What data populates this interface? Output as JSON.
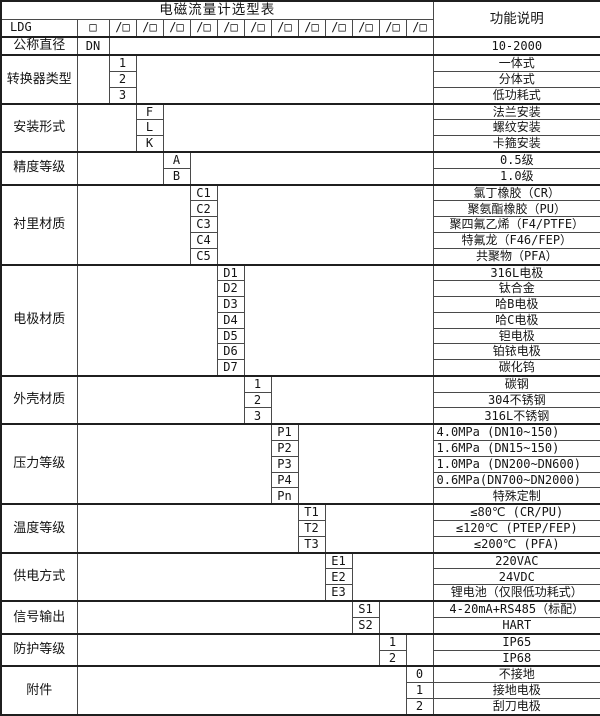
{
  "header": {
    "title": "电磁流量计选型表",
    "desc_header": "功能说明"
  },
  "model_row": {
    "prefix": "LDG",
    "first_slot": "□",
    "slot": "/□",
    "slot_count": 12
  },
  "layout_hint": {
    "code_columns": 12
  },
  "colors": {
    "background": "#ffffff",
    "text": "#141414",
    "grid_line": "#4a4a4a",
    "heavy_line": "#1f1f1f"
  },
  "groups": [
    {
      "label": "公称直径",
      "col": 0,
      "rows": [
        {
          "code": "DN",
          "desc": "10-2000"
        }
      ]
    },
    {
      "label": "转换器类型",
      "col": 1,
      "rows": [
        {
          "code": "1",
          "desc": "一体式"
        },
        {
          "code": "2",
          "desc": "分体式"
        },
        {
          "code": "3",
          "desc": "低功耗式"
        }
      ]
    },
    {
      "label": "安装形式",
      "col": 2,
      "rows": [
        {
          "code": "F",
          "desc": "法兰安装"
        },
        {
          "code": "L",
          "desc": "螺纹安装"
        },
        {
          "code": "K",
          "desc": "卡箍安装"
        }
      ]
    },
    {
      "label": "精度等级",
      "col": 3,
      "rows": [
        {
          "code": "A",
          "desc": "0.5级"
        },
        {
          "code": "B",
          "desc": "1.0级"
        }
      ]
    },
    {
      "label": "衬里材质",
      "col": 4,
      "rows": [
        {
          "code": "C1",
          "desc": "氯丁橡胶（CR）"
        },
        {
          "code": "C2",
          "desc": "聚氨酯橡胶（PU）"
        },
        {
          "code": "C3",
          "desc": "聚四氟乙烯（F4/PTFE）"
        },
        {
          "code": "C4",
          "desc": "特氟龙（F46/FEP）"
        },
        {
          "code": "C5",
          "desc": "共聚物（PFA）"
        }
      ]
    },
    {
      "label": "电极材质",
      "col": 5,
      "rows": [
        {
          "code": "D1",
          "desc": "316L电极"
        },
        {
          "code": "D2",
          "desc": "钛合金"
        },
        {
          "code": "D3",
          "desc": "哈B电极"
        },
        {
          "code": "D4",
          "desc": "哈C电极"
        },
        {
          "code": "D5",
          "desc": "钽电极"
        },
        {
          "code": "D6",
          "desc": "铂铱电极"
        },
        {
          "code": "D7",
          "desc": "碳化钨"
        }
      ]
    },
    {
      "label": "外壳材质",
      "col": 6,
      "rows": [
        {
          "code": "1",
          "desc": "碳钢"
        },
        {
          "code": "2",
          "desc": "304不锈钢"
        },
        {
          "code": "3",
          "desc": "316L不锈钢"
        }
      ]
    },
    {
      "label": "压力等级",
      "col": 7,
      "rows": [
        {
          "code": "P1",
          "desc": "4.0MPa (DN10~150)",
          "align": "left"
        },
        {
          "code": "P2",
          "desc": "1.6MPa (DN15~150)",
          "align": "left"
        },
        {
          "code": "P3",
          "desc": "1.0MPa (DN200~DN600)",
          "align": "left"
        },
        {
          "code": "P4",
          "desc": "0.6MPa(DN700~DN2000)",
          "align": "left"
        },
        {
          "code": "Pn",
          "desc": "特殊定制"
        }
      ]
    },
    {
      "label": "温度等级",
      "col": 8,
      "rows": [
        {
          "code": "T1",
          "desc": "≤80℃ (CR/PU)"
        },
        {
          "code": "T2",
          "desc": "≤120℃ (PTEP/FEP)"
        },
        {
          "code": "T3",
          "desc": "≤200℃ (PFA)"
        }
      ]
    },
    {
      "label": "供电方式",
      "col": 9,
      "rows": [
        {
          "code": "E1",
          "desc": "220VAC"
        },
        {
          "code": "E2",
          "desc": "24VDC"
        },
        {
          "code": "E3",
          "desc": "锂电池（仅限低功耗式）"
        }
      ]
    },
    {
      "label": "信号输出",
      "col": 10,
      "rows": [
        {
          "code": "S1",
          "desc": "4-20mA+RS485（标配）"
        },
        {
          "code": "S2",
          "desc": "HART"
        }
      ]
    },
    {
      "label": "防护等级",
      "col": 11,
      "rows": [
        {
          "code": "1",
          "desc": "IP65"
        },
        {
          "code": "2",
          "desc": "IP68"
        }
      ]
    },
    {
      "label": "附件",
      "col": 12,
      "rows": [
        {
          "code": "0",
          "desc": "不接地"
        },
        {
          "code": "1",
          "desc": "接地电极"
        },
        {
          "code": "2",
          "desc": "刮刀电极"
        }
      ]
    }
  ]
}
